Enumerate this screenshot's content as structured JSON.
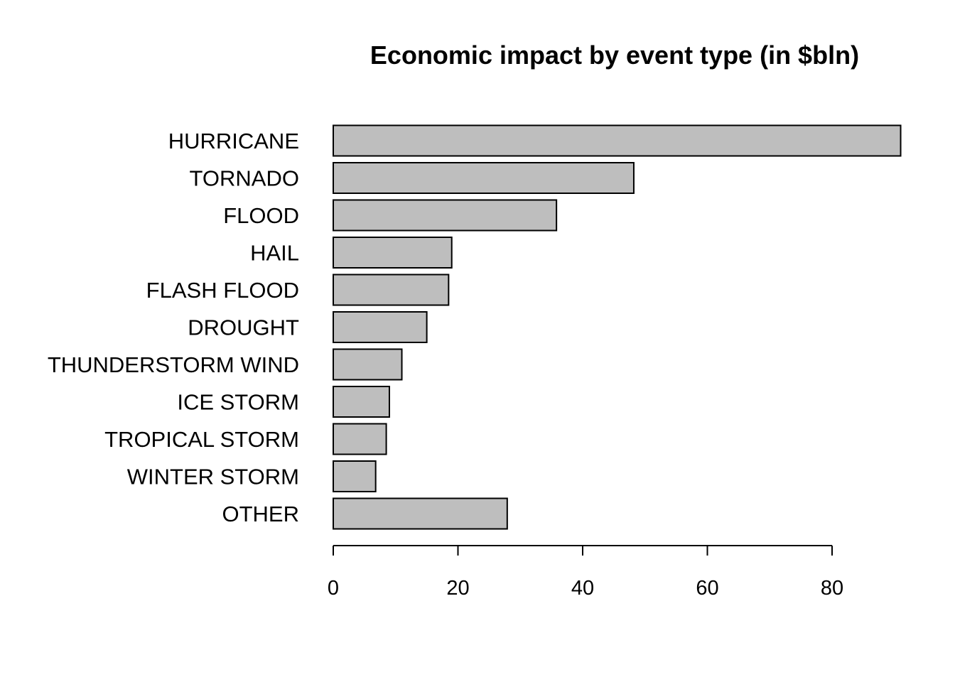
{
  "chart_data": {
    "type": "bar",
    "orientation": "horizontal",
    "title": "Economic impact by event type (in $bln)",
    "xlabel": "",
    "ylabel": "",
    "categories": [
      "HURRICANE",
      "TORNADO",
      "FLOOD",
      "HAIL",
      "FLASH FLOOD",
      "DROUGHT",
      "THUNDERSTORM WIND",
      "ICE STORM",
      "TROPICAL STORM",
      "WINTER STORM",
      "OTHER"
    ],
    "values": [
      91,
      48.2,
      35.8,
      19,
      18.5,
      15,
      11,
      9,
      8.5,
      6.8,
      27.9
    ],
    "xlim": [
      0,
      91
    ],
    "xticks": [
      0,
      20,
      40,
      60,
      80
    ],
    "bar_color": "#bebebe",
    "grid": false,
    "legend": "none"
  }
}
